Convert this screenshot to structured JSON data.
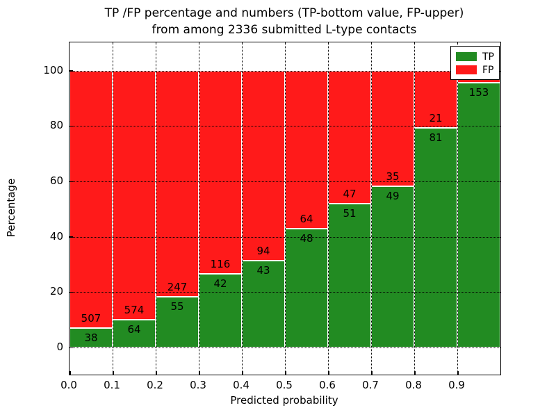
{
  "title": {
    "line1": "TP /FP percentage and numbers (TP-bottom value, FP-upper)",
    "line2": "from among 2336 submitted L-type contacts"
  },
  "axes": {
    "ylabel": "Percentage",
    "xlabel": "Predicted probability",
    "ytick_labels": [
      "0",
      "20",
      "40",
      "60",
      "80",
      "100"
    ],
    "ytick_values": [
      0,
      20,
      40,
      60,
      80,
      100
    ],
    "xtick_labels": [
      "0.0",
      "0.1",
      "0.2",
      "0.3",
      "0.4",
      "0.5",
      "0.6",
      "0.7",
      "0.8",
      "0.9"
    ],
    "xtick_values": [
      0.0,
      0.1,
      0.2,
      0.3,
      0.4,
      0.5,
      0.6,
      0.7,
      0.8,
      0.9
    ]
  },
  "legend": {
    "items": [
      {
        "label": "TP",
        "color": "#228b22"
      },
      {
        "label": "FP",
        "color": "#ff1a1a"
      }
    ]
  },
  "colors": {
    "tp_green": "#228b22",
    "fp_red": "#ff1a1a",
    "grid": "#000000"
  },
  "chart_data": {
    "type": "bar",
    "stacked": true,
    "normalized": "each bar totals 100%",
    "title": "TP /FP percentage and numbers (TP-bottom value, FP-upper) from among 2336 submitted L-type contacts",
    "xlabel": "Predicted probability",
    "ylabel": "Percentage",
    "total_contacts": 2336,
    "xlim": [
      0.0,
      1.0
    ],
    "ylim": [
      -10,
      110
    ],
    "grid": "dotted, drawn above bars",
    "legend_position": "upper right",
    "series": [
      {
        "name": "TP",
        "color": "#228b22",
        "position": "bottom"
      },
      {
        "name": "FP",
        "color": "#ff1a1a",
        "position": "top"
      }
    ],
    "bins": [
      {
        "x0": 0.0,
        "x1": 0.1,
        "tp": 38,
        "fp": 507,
        "fp_label_visible": true
      },
      {
        "x0": 0.1,
        "x1": 0.2,
        "tp": 64,
        "fp": 574,
        "fp_label_visible": true
      },
      {
        "x0": 0.2,
        "x1": 0.3,
        "tp": 55,
        "fp": 247,
        "fp_label_visible": true
      },
      {
        "x0": 0.3,
        "x1": 0.4,
        "tp": 42,
        "fp": 116,
        "fp_label_visible": true
      },
      {
        "x0": 0.4,
        "x1": 0.5,
        "tp": 43,
        "fp": 94,
        "fp_label_visible": true
      },
      {
        "x0": 0.5,
        "x1": 0.6,
        "tp": 48,
        "fp": 64,
        "fp_label_visible": true
      },
      {
        "x0": 0.6,
        "x1": 0.7,
        "tp": 51,
        "fp": 47,
        "fp_label_visible": true
      },
      {
        "x0": 0.7,
        "x1": 0.8,
        "tp": 49,
        "fp": 35,
        "fp_label_visible": true
      },
      {
        "x0": 0.8,
        "x1": 0.9,
        "tp": 81,
        "fp": 21,
        "fp_label_visible": true
      },
      {
        "x0": 0.9,
        "x1": 1.0,
        "tp": 153,
        "fp": 7,
        "fp_label_visible": false
      }
    ]
  }
}
